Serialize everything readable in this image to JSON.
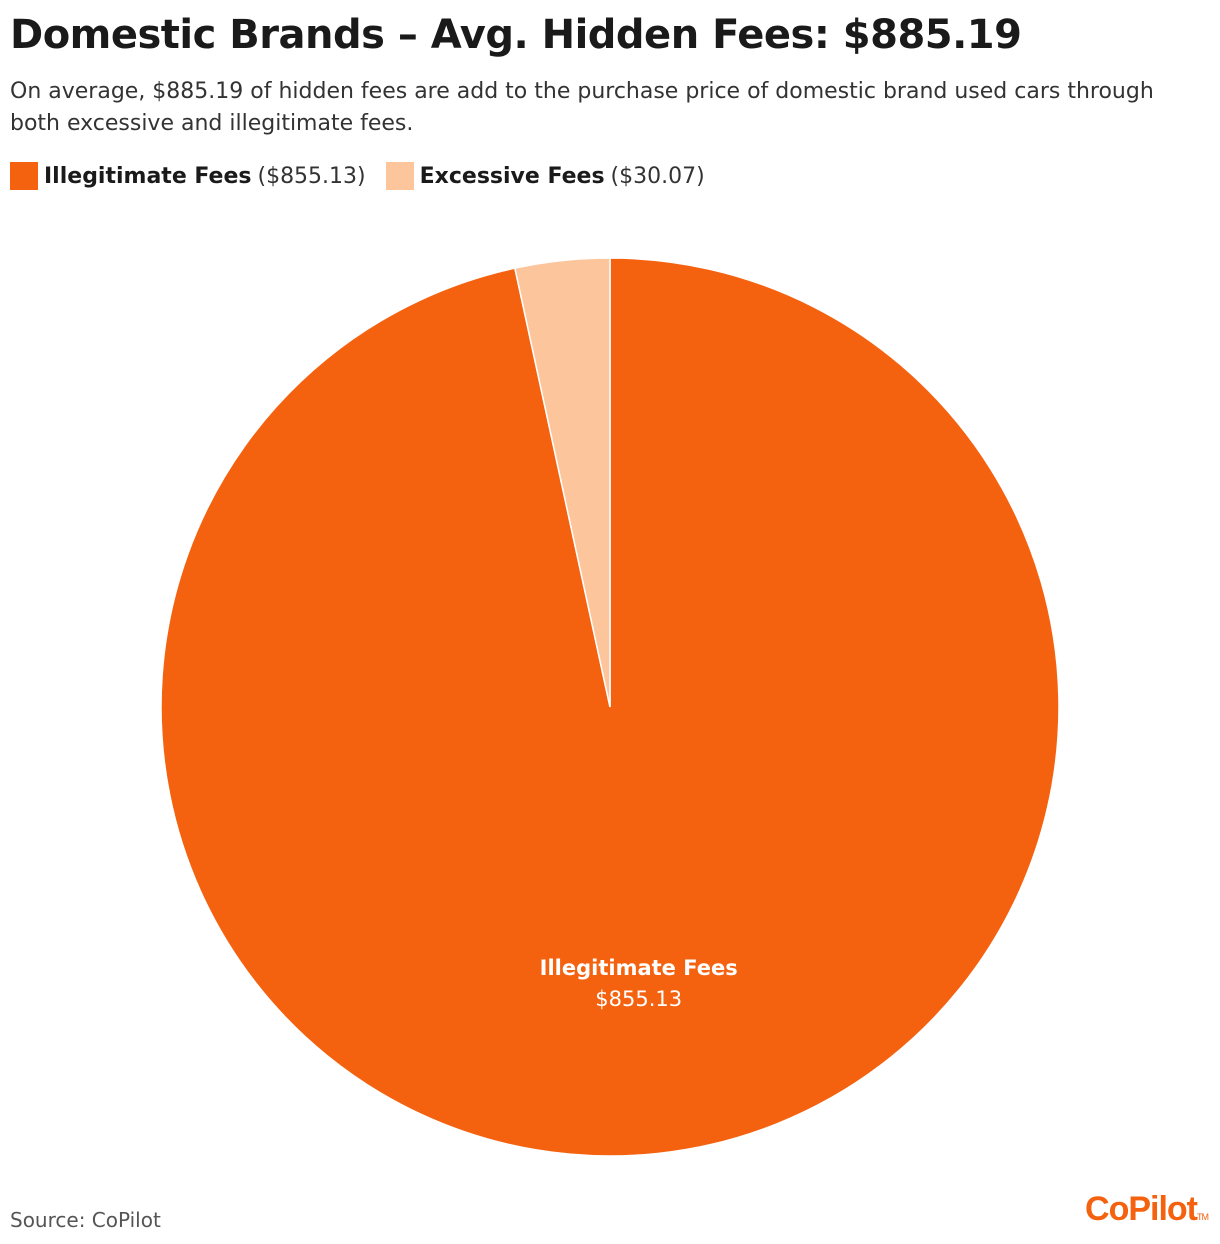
{
  "header": {
    "title": "Domestic Brands – Avg. Hidden Fees: $885.19",
    "subtitle": "On average, $885.19 of hidden fees are add to the purchase price of domestic brand used cars through both excessive and illegitimate fees."
  },
  "legend": {
    "items": [
      {
        "label": "Illegitimate Fees",
        "value_text": "($855.13)",
        "color": "#f5620f"
      },
      {
        "label": "Excessive Fees",
        "value_text": "($30.07)",
        "color": "#fdc59c"
      }
    ]
  },
  "chart_data": {
    "type": "pie",
    "title": "Domestic Brands – Avg. Hidden Fees: $885.19",
    "slices": [
      {
        "label": "Illegitimate Fees",
        "value": 855.13,
        "value_label": "$855.13",
        "color": "#f5620f",
        "show_label": true
      },
      {
        "label": "Excessive Fees",
        "value": 30.07,
        "value_label": "$30.07",
        "color": "#fdc59c",
        "show_label": false
      }
    ],
    "start_angle": "12 o'clock",
    "direction": "clockwise",
    "legend_position": "top-left"
  },
  "footer": {
    "source": "Source: CoPilot",
    "logo_text": "CoPilot",
    "logo_tm": "TM",
    "logo_color": "#f5620f"
  }
}
